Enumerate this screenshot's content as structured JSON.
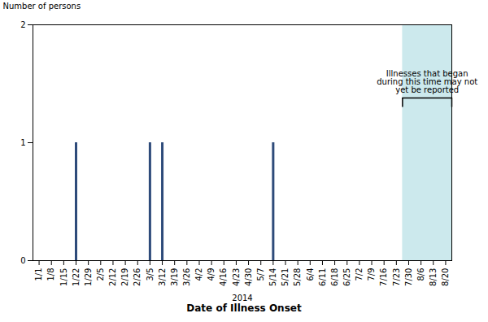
{
  "chart_data": {
    "type": "bar",
    "categories": [
      "1/1",
      "1/8",
      "1/15",
      "1/22",
      "1/29",
      "2/5",
      "2/12",
      "2/19",
      "2/26",
      "3/5",
      "3/12",
      "3/19",
      "3/26",
      "4/2",
      "4/9",
      "4/16",
      "4/23",
      "4/30",
      "5/7",
      "5/14",
      "5/21",
      "5/28",
      "6/4",
      "6/11",
      "6/18",
      "6/25",
      "7/2",
      "7/9",
      "7/16",
      "7/23",
      "7/30",
      "8/6",
      "8/13",
      "8/20"
    ],
    "values": [
      0,
      0,
      0,
      1,
      0,
      0,
      0,
      0,
      0,
      1,
      1,
      0,
      0,
      0,
      0,
      0,
      0,
      0,
      0,
      1,
      0,
      0,
      0,
      0,
      0,
      0,
      0,
      0,
      0,
      0,
      0,
      0,
      0,
      0
    ],
    "color": "#2e4b7a",
    "ylim": [
      0,
      2
    ],
    "yticks": [
      0,
      1,
      2
    ],
    "ylabel": "Number of persons",
    "xlabel": "2014",
    "xsublabel": "Date of Illness Onset",
    "grid": false,
    "annotations": [
      {
        "text": "Illnesses that began\nduring this time may not\nyet be reported",
        "start": "7/30",
        "end": "8/20",
        "color": "#cce9ed"
      }
    ]
  }
}
